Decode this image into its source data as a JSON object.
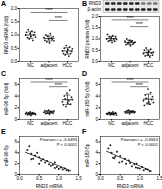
{
  "chart_data": [
    {
      "type": "strip",
      "title": "A",
      "y_label": "RND3 mRNA (fold)",
      "color": "#222222",
      "marker": "circle",
      "categories": [
        "NC",
        "adjacent",
        "HCC"
      ],
      "values": [
        [
          1.0,
          1.1,
          0.9,
          1.2,
          0.85,
          1.05,
          0.95,
          1.15,
          0.8,
          1.0,
          1.1,
          0.92
        ],
        [
          0.9,
          0.8,
          1.0,
          0.75,
          0.95,
          0.85,
          0.7,
          1.05,
          0.88,
          0.82,
          0.93,
          0.78
        ],
        [
          0.4,
          0.3,
          0.5,
          0.25,
          0.6,
          0.35,
          0.45,
          0.2,
          0.55,
          0.3,
          0.38,
          0.48
        ]
      ],
      "means": [
        1.0,
        0.87,
        0.4
      ],
      "errors": [
        0.12,
        0.1,
        0.12
      ],
      "brackets": [
        {
          "from": "NC",
          "to": "HCC",
          "y": 1.85,
          "label": "****"
        },
        {
          "from": "adjacent",
          "to": "HCC",
          "y": 1.55,
          "label": "****"
        }
      ],
      "ylim": [
        0,
        2
      ],
      "yticks": [
        {
          "value": 0,
          "label": "0.0"
        },
        {
          "value": 0.5,
          "label": "0.5"
        },
        {
          "value": 1,
          "label": "1.0"
        },
        {
          "value": 1.5,
          "label": "1.5"
        },
        {
          "value": 2,
          "label": "2.0"
        }
      ]
    },
    {
      "type": "strip",
      "title": "B",
      "y_label": "RND3 protein (fold)",
      "color": "#222222",
      "marker": "circle",
      "blot": [
        "RND3",
        "β-actin"
      ],
      "categories": [
        "NC",
        "adjacent",
        "HCC"
      ],
      "values": [
        [
          1.0,
          1.2,
          0.9,
          1.1,
          0.95,
          1.05,
          0.85,
          1.15,
          1.0,
          0.9,
          1.1,
          0.98
        ],
        [
          0.9,
          0.75,
          1.0,
          0.8,
          0.85,
          0.95,
          0.7,
          0.88,
          0.92,
          0.78,
          0.83,
          0.86
        ],
        [
          0.35,
          0.5,
          0.25,
          0.6,
          0.4,
          0.3,
          0.45,
          0.2,
          0.55,
          0.38,
          0.28,
          0.42
        ]
      ],
      "means": [
        1.02,
        0.85,
        0.39
      ],
      "errors": [
        0.1,
        0.09,
        0.12
      ],
      "brackets": [
        {
          "from": "NC",
          "to": "HCC",
          "y": 1.85,
          "label": "****"
        },
        {
          "from": "adjacent",
          "to": "HCC",
          "y": 1.55,
          "label": "****"
        }
      ],
      "ylim": [
        0,
        2
      ],
      "yticks": [
        {
          "value": 0,
          "label": "0.0"
        },
        {
          "value": 0.5,
          "label": "0.5"
        },
        {
          "value": 1,
          "label": "1.0"
        },
        {
          "value": 1.5,
          "label": "1.5"
        },
        {
          "value": 2,
          "label": "2.0"
        }
      ]
    },
    {
      "type": "strip",
      "title": "C",
      "y_label": "miR-96-5p (fold)",
      "color": "#222222",
      "marker": "circle",
      "categories": [
        "NC",
        "adjacent",
        "HCC"
      ],
      "values": [
        [
          1.0,
          1.2,
          0.8,
          1.1,
          0.9,
          1.3,
          0.7,
          1.0,
          1.15,
          0.95,
          1.05,
          0.85
        ],
        [
          1.2,
          1.5,
          1.0,
          1.4,
          1.1,
          1.6,
          0.9,
          1.3,
          1.25,
          1.35,
          1.05,
          1.45
        ],
        [
          3.0,
          2.5,
          4.0,
          3.5,
          2.2,
          4.5,
          2.8,
          3.2,
          5.0,
          2.6,
          3.8,
          3.4
        ]
      ],
      "means": [
        1.0,
        1.26,
        3.38
      ],
      "errors": [
        0.17,
        0.21,
        0.8
      ],
      "brackets": [
        {
          "from": "NC",
          "to": "HCC",
          "y": 6.4,
          "label": "****"
        },
        {
          "from": "adjacent",
          "to": "HCC",
          "y": 5.6,
          "label": "****"
        }
      ],
      "ylim": [
        0,
        7
      ],
      "yticks": [
        0,
        2,
        4,
        6
      ]
    },
    {
      "type": "strip",
      "title": "D",
      "y_label": "miR-182-5p (fold)",
      "color": "#222222",
      "marker": "circle",
      "categories": [
        "NC",
        "adjacent",
        "HCC"
      ],
      "values": [
        [
          1.0,
          0.9,
          1.1,
          1.2,
          0.8,
          1.05,
          0.95,
          1.3,
          0.85,
          1.0,
          1.15,
          0.75
        ],
        [
          1.3,
          1.1,
          1.5,
          1.2,
          1.6,
          1.0,
          1.4,
          1.25,
          1.35,
          1.45,
          1.15,
          1.3
        ],
        [
          3.2,
          2.4,
          4.2,
          3.6,
          2.8,
          5.2,
          3.0,
          2.6,
          4.6,
          3.4,
          3.9,
          2.9
        ]
      ],
      "means": [
        1.0,
        1.3,
        3.48
      ],
      "errors": [
        0.16,
        0.17,
        0.85
      ],
      "brackets": [
        {
          "from": "NC",
          "to": "HCC",
          "y": 6.4,
          "label": "****"
        },
        {
          "from": "adjacent",
          "to": "HCC",
          "y": 5.6,
          "label": "****"
        }
      ],
      "ylim": [
        0,
        7
      ],
      "yticks": [
        0,
        2,
        4,
        6
      ]
    },
    {
      "type": "scatter",
      "title": "E",
      "x_label": "RND3 mRNA",
      "y_label": "miR-96-5p",
      "color": "#222222",
      "marker": "circle",
      "annotation": [
        "Pearson r = -0.6493",
        "P < 0.0001"
      ],
      "x": [
        0.2,
        0.3,
        0.25,
        0.4,
        0.35,
        0.5,
        0.45,
        0.55,
        0.6,
        0.65,
        0.7,
        0.75,
        0.8,
        0.85,
        0.9,
        0.95,
        1.0,
        1.05,
        1.1,
        1.15,
        1.2,
        0.3,
        0.5,
        0.9,
        1.25
      ],
      "y": [
        4.5,
        3.8,
        5.2,
        3.5,
        2.9,
        3.2,
        4.0,
        2.6,
        2.8,
        2.2,
        2.5,
        1.9,
        1.6,
        1.8,
        1.2,
        1.4,
        1.0,
        1.3,
        0.9,
        1.1,
        0.8,
        2.8,
        2.0,
        2.2,
        0.7
      ],
      "fit": {
        "x": [
          0.15,
          1.3
        ],
        "y": [
          4.1,
          0.7
        ]
      },
      "xlim": [
        0,
        1.5
      ],
      "xticks": [
        {
          "value": 0,
          "label": "0.0"
        },
        {
          "value": 0.5,
          "label": "0.5"
        },
        {
          "value": 1,
          "label": "1.0"
        },
        {
          "value": 1.5,
          "label": "1.5"
        }
      ],
      "ylim": [
        0,
        7
      ],
      "yticks": [
        0,
        2,
        4,
        6
      ]
    },
    {
      "type": "scatter",
      "title": "F",
      "x_label": "RND3 mRNA",
      "y_label": "miR-182-5p",
      "color": "#222222",
      "marker": "circle",
      "annotation": [
        "Pearson r = -0.6563",
        "P < 0.0001"
      ],
      "x": [
        0.2,
        0.28,
        0.25,
        0.38,
        0.35,
        0.5,
        0.42,
        0.55,
        0.62,
        0.65,
        0.72,
        0.75,
        0.8,
        0.86,
        0.9,
        0.95,
        1.0,
        1.06,
        1.1,
        1.15,
        1.2,
        0.32,
        0.48,
        0.92,
        1.25
      ],
      "y": [
        4.8,
        4.0,
        5.4,
        3.3,
        3.0,
        3.4,
        4.2,
        2.4,
        2.9,
        2.0,
        2.6,
        2.1,
        1.5,
        1.9,
        1.3,
        1.2,
        1.1,
        1.4,
        0.8,
        1.0,
        0.9,
        3.1,
        2.2,
        2.0,
        0.6
      ],
      "fit": {
        "x": [
          0.15,
          1.3
        ],
        "y": [
          4.3,
          0.6
        ]
      },
      "xlim": [
        0,
        1.5
      ],
      "xticks": [
        {
          "value": 0,
          "label": "0.0"
        },
        {
          "value": 0.5,
          "label": "0.5"
        },
        {
          "value": 1,
          "label": "1.0"
        },
        {
          "value": 1.5,
          "label": "1.5"
        }
      ],
      "ylim": [
        0,
        7
      ],
      "yticks": [
        0,
        2,
        4,
        6
      ]
    }
  ]
}
